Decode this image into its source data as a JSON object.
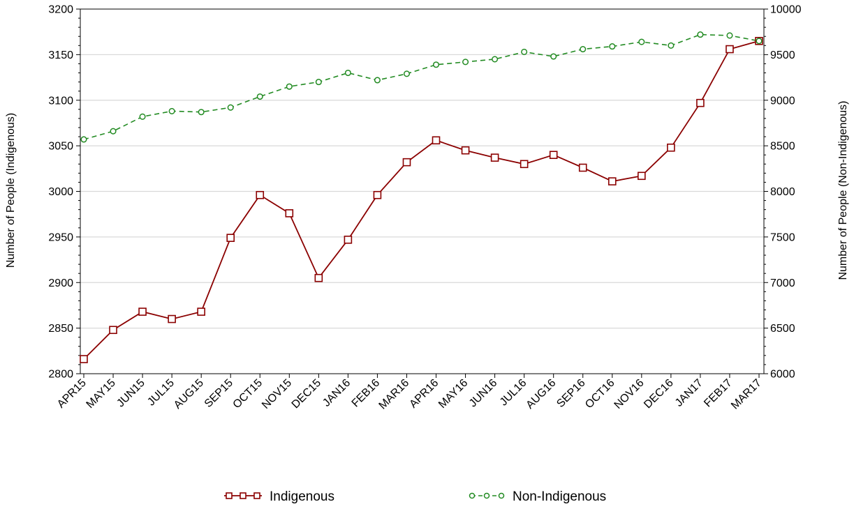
{
  "chart_data": {
    "type": "line",
    "categories": [
      "APR15",
      "MAY15",
      "JUN15",
      "JUL15",
      "AUG15",
      "SEP15",
      "OCT15",
      "NOV15",
      "DEC15",
      "JAN16",
      "FEB16",
      "MAR16",
      "APR16",
      "MAY16",
      "JUN16",
      "JUL16",
      "AUG16",
      "SEP16",
      "OCT16",
      "NOV16",
      "DEC16",
      "JAN17",
      "FEB17",
      "MAR17"
    ],
    "ylabel": "Number of People (Indigenous)",
    "y2label": "Number of People (Non-Indigenous)",
    "ylim": [
      2800,
      3200
    ],
    "y2lim": [
      6000,
      10000
    ],
    "yticks": [
      2800,
      2850,
      2900,
      2950,
      3000,
      3050,
      3100,
      3150,
      3200
    ],
    "y2ticks": [
      6000,
      6500,
      7000,
      7500,
      8000,
      8500,
      9000,
      9500,
      10000
    ],
    "grid": true,
    "legend_position": "bottom",
    "series": [
      {
        "name": "Indigenous",
        "axis": "left",
        "color": "#8b0000",
        "marker": "square",
        "line_style": "solid",
        "values": [
          2816,
          2848,
          2868,
          2860,
          2868,
          2949,
          2996,
          2976,
          2905,
          2947,
          2996,
          3032,
          3056,
          3045,
          3037,
          3030,
          3040,
          3026,
          3011,
          3017,
          3048,
          3097,
          3156,
          3165
        ]
      },
      {
        "name": "Non-Indigenous",
        "axis": "right",
        "color": "#228b22",
        "marker": "circle",
        "line_style": "dashed",
        "values": [
          8570,
          8660,
          8820,
          8880,
          8870,
          8920,
          9040,
          9150,
          9200,
          9300,
          9220,
          9290,
          9390,
          9420,
          9450,
          9530,
          9480,
          9560,
          9590,
          9640,
          9600,
          9720,
          9710,
          9650
        ]
      }
    ]
  }
}
